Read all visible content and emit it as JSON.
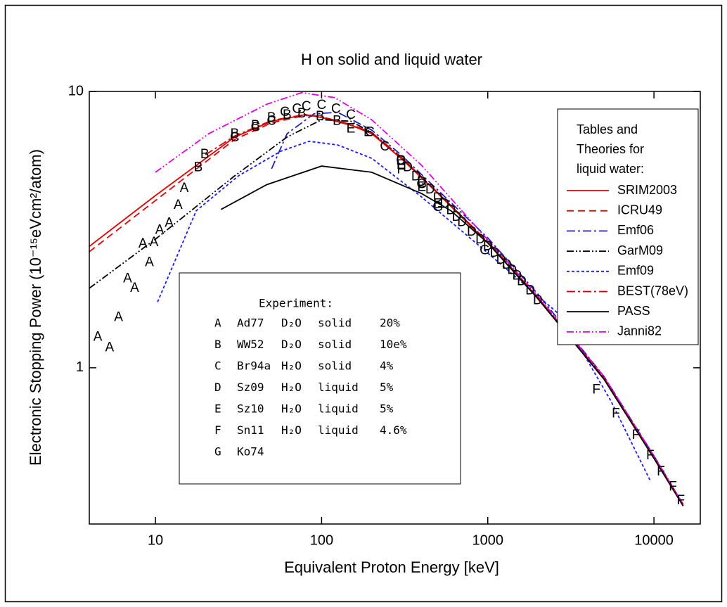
{
  "chart_data": {
    "type": "line",
    "title": "H on solid and liquid water",
    "xlabel": "Equivalent Proton Energy [keV]",
    "ylabel": "Electronic Stopping Power (10⁻¹⁵eVcm²/atom)",
    "xscale": "log",
    "yscale": "log",
    "xlim": [
      4,
      19000
    ],
    "ylim": [
      0.272,
      10
    ],
    "xticks": [
      10,
      100,
      1000,
      10000
    ],
    "yticks": [
      1,
      10
    ],
    "legend_title": [
      "Tables and",
      "Theories for",
      "liquid water:"
    ],
    "legend_position": "upper right",
    "series": [
      {
        "name": "SRIM2003",
        "color": "#e00000",
        "dash": "solid",
        "x": [
          4,
          10,
          30,
          50,
          80,
          100,
          150,
          200,
          300,
          500,
          1000,
          2000,
          5000,
          10000,
          15000
        ],
        "values": [
          2.75,
          4.2,
          6.84,
          7.8,
          8.24,
          8.05,
          7.55,
          7.04,
          5.73,
          4.28,
          2.83,
          1.78,
          0.91,
          0.47,
          0.316
        ]
      },
      {
        "name": "ICRU49",
        "color": "#e00000",
        "dash": "dashed",
        "x": [
          4,
          10,
          30,
          50,
          80,
          100,
          150,
          200,
          300,
          500,
          1000,
          2000,
          5000,
          10000,
          15000
        ],
        "values": [
          2.63,
          4.03,
          6.7,
          7.7,
          8.2,
          8.05,
          7.55,
          7.04,
          5.75,
          4.3,
          2.85,
          1.8,
          0.92,
          0.475,
          0.32
        ]
      },
      {
        "name": "Emf06",
        "color": "#2020c0",
        "dash": "dashdot",
        "x": [
          50,
          62,
          90,
          125,
          200,
          300,
          500,
          1000,
          2000,
          5000,
          10000,
          15000
        ],
        "values": [
          5.25,
          7.03,
          8.3,
          8.4,
          7.25,
          5.9,
          4.4,
          2.95,
          1.85,
          0.93,
          0.48,
          0.32
        ]
      },
      {
        "name": "GarM09",
        "color": "#000000",
        "dash": "dashdotdot",
        "x": [
          4,
          10,
          30,
          62,
          100,
          150,
          200,
          300,
          500,
          1000,
          2000,
          5000,
          10000,
          15000
        ],
        "values": [
          1.94,
          2.92,
          4.95,
          6.84,
          7.9,
          7.8,
          7.1,
          5.8,
          4.3,
          2.85,
          1.8,
          0.92,
          0.475,
          0.32
        ]
      },
      {
        "name": "Emf09",
        "color": "#1a1aff",
        "dash": "dotted",
        "x": [
          10.3,
          17.6,
          31.6,
          57,
          84,
          125,
          200,
          400,
          1000,
          2800,
          5500,
          9500
        ],
        "values": [
          1.73,
          3.7,
          4.95,
          6.08,
          6.6,
          6.4,
          5.73,
          4.15,
          2.6,
          1.53,
          0.76,
          0.39
        ]
      },
      {
        "name": "BEST(78eV)",
        "color": "#d00000",
        "dash": "dashdot",
        "x": [
          20,
          30,
          50,
          80,
          100,
          150,
          200,
          300,
          500,
          1000,
          2000,
          5000,
          10000,
          15000
        ],
        "values": [
          5.9,
          6.9,
          7.85,
          8.25,
          8.1,
          7.6,
          7.1,
          5.8,
          4.3,
          2.86,
          1.8,
          0.92,
          0.475,
          0.32
        ]
      },
      {
        "name": "PASS",
        "color": "#000000",
        "dash": "solid",
        "x": [
          24.8,
          46.8,
          100,
          200,
          400,
          600,
          1000,
          2000,
          5000,
          10000,
          15000
        ],
        "values": [
          3.74,
          4.6,
          5.37,
          5.1,
          4.27,
          3.7,
          2.83,
          1.78,
          0.91,
          0.47,
          0.316
        ]
      },
      {
        "name": "Janni82",
        "color": "#e000e0",
        "dash": "dashdotdot",
        "x": [
          10,
          21,
          47,
          76,
          120,
          200,
          400,
          1000,
          2000,
          5000,
          10000,
          15000
        ],
        "values": [
          5.1,
          7.04,
          9.0,
          9.9,
          9.5,
          7.9,
          5.4,
          2.9,
          1.82,
          0.93,
          0.48,
          0.32
        ]
      }
    ],
    "experiment_title": "Experiment:",
    "experiments": [
      {
        "marker": "A",
        "name": "Ad77",
        "target": "D₂O",
        "phase": "solid",
        "uncertainty": "20%",
        "x": [
          4.5,
          5.3,
          6.0,
          6.8,
          7.5,
          8.4,
          9.2,
          9.8,
          10.6,
          12.1,
          13.7,
          14.9
        ],
        "values": [
          1.29,
          1.18,
          1.52,
          2.1,
          1.94,
          2.8,
          2.4,
          2.84,
          3.14,
          3.33,
          3.87,
          4.46
        ]
      },
      {
        "marker": "B",
        "name": "WW52",
        "target": "D₂O",
        "phase": "solid",
        "uncertainty": "10e%",
        "x": [
          18.1,
          19.8,
          30,
          40,
          50,
          62,
          76,
          98,
          124
        ],
        "values": [
          5.3,
          5.9,
          7.0,
          7.5,
          8.0,
          8.2,
          8.3,
          8.1,
          7.8
        ]
      },
      {
        "marker": "C",
        "name": "Br94a",
        "target": "H₂O",
        "phase": "solid",
        "uncertainty": "4%",
        "x": [
          30,
          40,
          50,
          60,
          71,
          81,
          100,
          122,
          150,
          195,
          240,
          300
        ],
        "values": [
          6.8,
          7.4,
          7.8,
          8.4,
          8.6,
          8.8,
          8.9,
          8.6,
          8.2,
          7.1,
          6.3,
          5.6
        ]
      },
      {
        "marker": "D",
        "name": "Sz09",
        "target": "H₂O",
        "phase": "liquid",
        "uncertainty": "5%",
        "x": [
          300,
          330,
          370,
          400,
          450,
          500,
          550,
          600,
          650,
          700,
          800,
          900,
          1000,
          1100,
          1200,
          1300,
          1400,
          1500,
          1600,
          1800,
          2000
        ],
        "values": [
          5.6,
          5.3,
          4.9,
          4.7,
          4.4,
          4.1,
          3.9,
          3.7,
          3.5,
          3.35,
          3.1,
          2.9,
          2.75,
          2.6,
          2.45,
          2.35,
          2.25,
          2.15,
          2.05,
          1.9,
          1.75
        ]
      },
      {
        "marker": "E",
        "name": "Sz10",
        "target": "H₂O",
        "phase": "liquid",
        "uncertainty": "5%",
        "x": [
          150,
          190,
          300,
          400,
          500
        ],
        "values": [
          7.3,
          7.1,
          5.4,
          4.5,
          3.9
        ]
      },
      {
        "marker": "F",
        "name": "Sn11",
        "target": "H₂O",
        "phase": "liquid",
        "uncertainty": "4.6%",
        "x": [
          300,
          4500,
          5900,
          7800,
          9500,
          11000,
          13000,
          14500
        ],
        "values": [
          5.2,
          0.83,
          0.68,
          0.57,
          0.48,
          0.42,
          0.37,
          0.33
        ]
      },
      {
        "marker": "G",
        "name": "Ko74",
        "x": [
          400,
          500,
          960
        ],
        "values": [
          4.6,
          3.8,
          2.65
        ]
      }
    ]
  }
}
